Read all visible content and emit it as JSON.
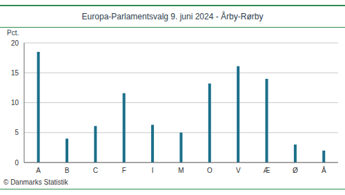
{
  "chart_data": {
    "type": "bar",
    "title": "Europa-Parlamentsvalg 9. juni 2024 - Årby-Rørby",
    "ylabel": "Pct.",
    "annotations": [
      "© Danmarks Statistik"
    ],
    "categories": [
      "A",
      "B",
      "C",
      "F",
      "I",
      "M",
      "O",
      "V",
      "Æ",
      "Ø",
      "Å"
    ],
    "values": [
      18.5,
      4.0,
      6.1,
      11.6,
      6.3,
      5.0,
      13.2,
      16.1,
      14.0,
      3.0,
      2.0
    ],
    "color": "#1a6f8a",
    "ylim": [
      0,
      20
    ],
    "yticks": [
      0,
      5,
      10,
      15,
      20
    ],
    "grid": true
  }
}
